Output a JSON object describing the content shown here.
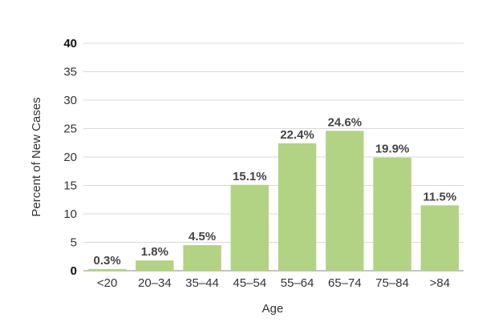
{
  "chart_data": {
    "type": "bar",
    "categories": [
      "<20",
      "20–34",
      "35–44",
      "45–54",
      "55–64",
      "65–74",
      "75–84",
      ">84"
    ],
    "values": [
      0.3,
      1.8,
      4.5,
      15.1,
      22.4,
      24.6,
      19.9,
      11.5
    ],
    "data_labels": [
      "0.3%",
      "1.8%",
      "4.5%",
      "15.1%",
      "22.4%",
      "24.6%",
      "19.9%",
      "11.5%"
    ],
    "title": "",
    "xlabel": "Age",
    "ylabel": "Percent of New Cases",
    "ylim": [
      0,
      40
    ],
    "yticks": [
      0,
      5,
      10,
      15,
      20,
      25,
      30,
      35,
      40
    ],
    "grid": true,
    "bar_color": "#b2d383"
  }
}
